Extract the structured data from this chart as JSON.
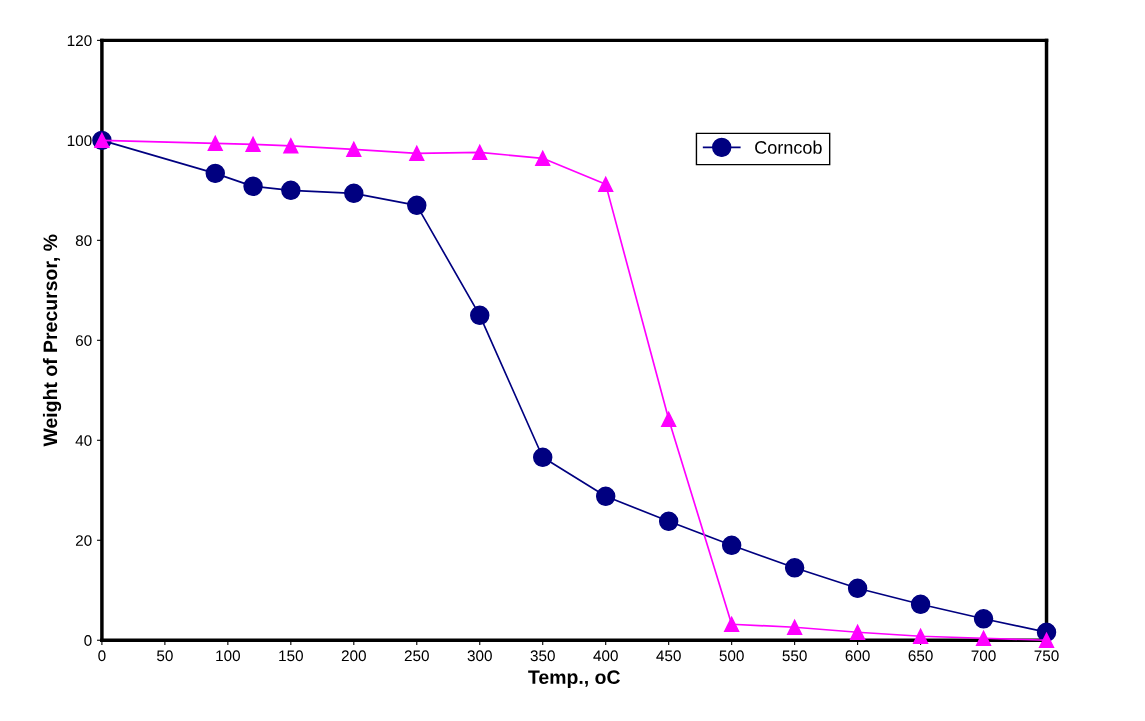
{
  "chart_data": {
    "type": "line",
    "xlabel": "Temp., oC",
    "ylabel": "Weight of Precursor, %",
    "x": [
      0,
      90,
      120,
      150,
      200,
      250,
      300,
      350,
      400,
      450,
      500,
      550,
      600,
      650,
      700,
      750
    ],
    "series": [
      {
        "name": "Corncob",
        "color": "#000080",
        "marker": "circle",
        "values": [
          100,
          93.4,
          90.8,
          90,
          89.4,
          87,
          65,
          36.6,
          28.8,
          23.8,
          19,
          14.5,
          10.4,
          7.2,
          4.3,
          1.6
        ]
      },
      {
        "color": "#ff00ff",
        "marker": "triangle",
        "values": [
          100,
          99.4,
          99.2,
          98.9,
          98.2,
          97.4,
          97.6,
          96.4,
          91.2,
          44.2,
          3.2,
          2.6,
          1.6,
          0.8,
          0.4,
          0
        ]
      }
    ],
    "xlim": [
      0,
      750
    ],
    "xticks": [
      0,
      50,
      100,
      150,
      200,
      250,
      300,
      350,
      400,
      450,
      500,
      550,
      600,
      650,
      700,
      750
    ],
    "ylim": [
      0,
      120
    ],
    "yticks": [
      0,
      20,
      40,
      60,
      80,
      100,
      120
    ],
    "grid": false,
    "legend": "top right",
    "line_style": "solid"
  }
}
